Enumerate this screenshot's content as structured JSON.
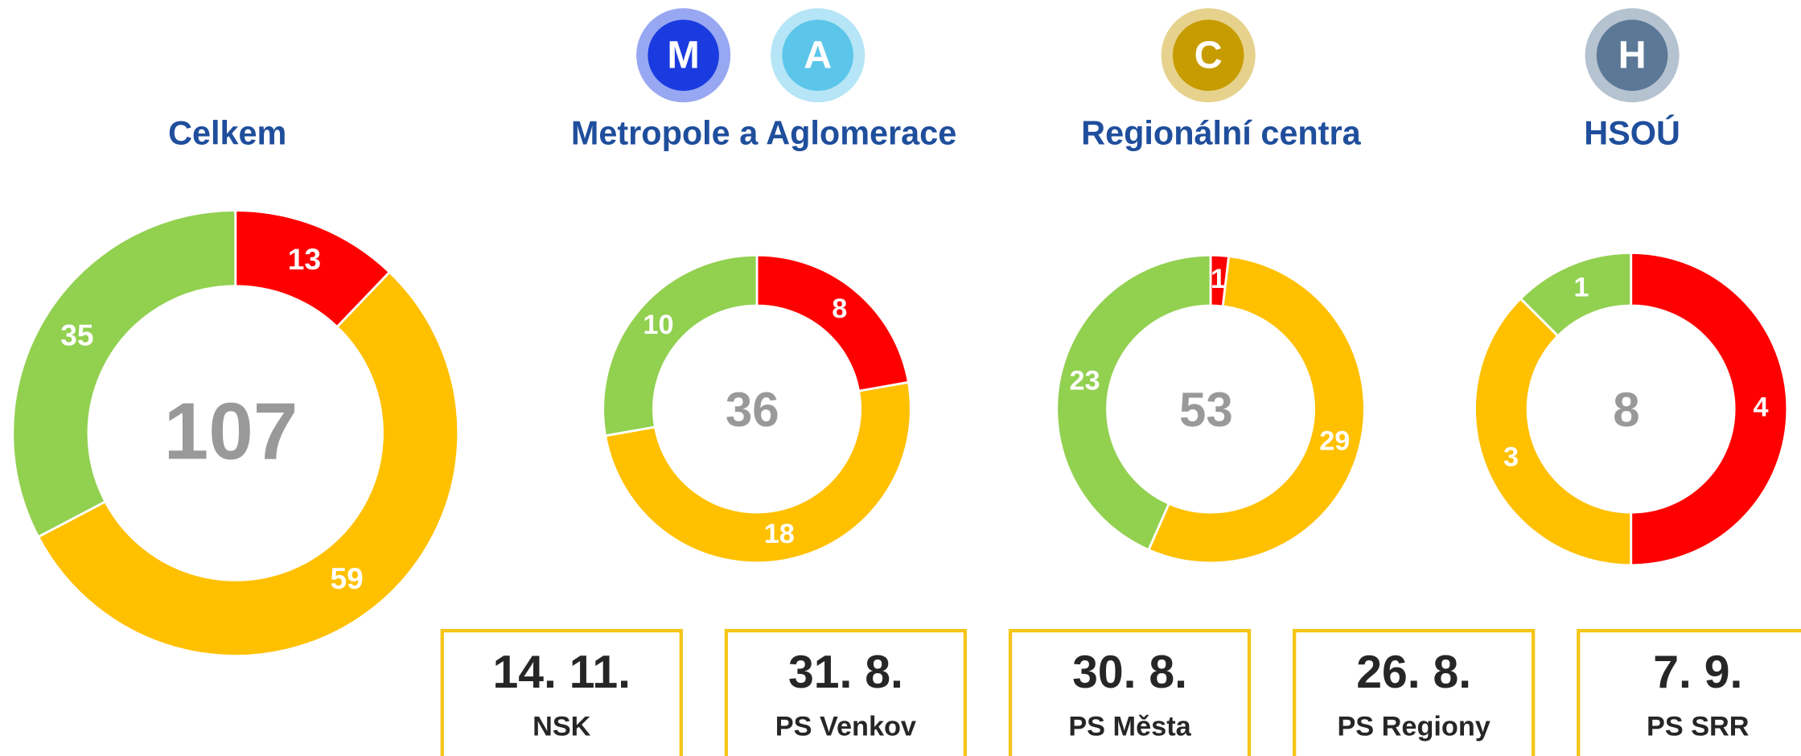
{
  "chart_data": [
    {
      "type": "donut",
      "title": "Celkem",
      "total": 107,
      "badges": [],
      "values": [
        13,
        59,
        35
      ],
      "colors": [
        "#ff0000",
        "#ffc000",
        "#92d050"
      ]
    },
    {
      "type": "donut",
      "title": "Metropole a Aglomerace",
      "total": 36,
      "badges": [
        "M",
        "A"
      ],
      "badge_colors": [
        "#1a3be0",
        "#5cc6ea"
      ],
      "values": [
        8,
        18,
        10
      ],
      "colors": [
        "#ff0000",
        "#ffc000",
        "#92d050"
      ]
    },
    {
      "type": "donut",
      "title": "Regionální centra",
      "total": 53,
      "badges": [
        "C"
      ],
      "badge_colors": [
        "#c79c00"
      ],
      "values": [
        1,
        29,
        23
      ],
      "colors": [
        "#ff0000",
        "#ffc000",
        "#92d050"
      ]
    },
    {
      "type": "donut",
      "title": "HSOÚ",
      "total": 8,
      "badges": [
        "H"
      ],
      "badge_colors": [
        "#5b7896"
      ],
      "values": [
        4,
        3,
        1
      ],
      "colors": [
        "#ff0000",
        "#ffc000",
        "#92d050"
      ]
    }
  ],
  "dates": [
    {
      "date": "14. 11.",
      "label": "NSK"
    },
    {
      "date": "31. 8.",
      "label": "PS Venkov"
    },
    {
      "date": "30. 8.",
      "label": "PS Města"
    },
    {
      "date": "26. 8.",
      "label": "PS Regiony"
    },
    {
      "date": "7. 9.",
      "label": "PS SRR"
    }
  ]
}
